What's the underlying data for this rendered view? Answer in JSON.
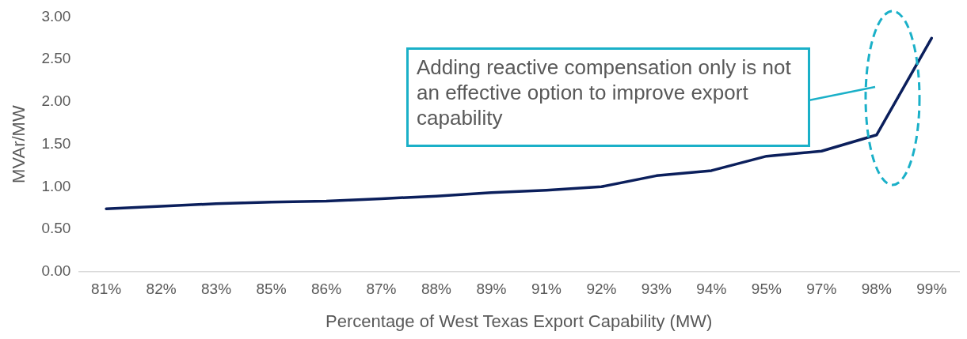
{
  "chart_data": {
    "type": "line",
    "xlabel": "Percentage of West Texas Export Capability (MW)",
    "ylabel": "MVAr/MW",
    "categories": [
      "81%",
      "82%",
      "83%",
      "85%",
      "86%",
      "87%",
      "88%",
      "89%",
      "91%",
      "92%",
      "93%",
      "94%",
      "95%",
      "97%",
      "98%",
      "99%"
    ],
    "series": [
      {
        "color": "#0b1f5c",
        "values": [
          0.74,
          0.77,
          0.8,
          0.82,
          0.83,
          0.86,
          0.89,
          0.93,
          0.96,
          1.0,
          1.13,
          1.19,
          1.36,
          1.42,
          1.61,
          2.75
        ]
      }
    ],
    "ylim": [
      0,
      3
    ],
    "yticks": [
      {
        "value": 0,
        "label": "0.00"
      },
      {
        "value": 0.5,
        "label": "0.50"
      },
      {
        "value": 1,
        "label": "1.00"
      },
      {
        "value": 1.5,
        "label": "1.50"
      },
      {
        "value": 2,
        "label": "2.00"
      },
      {
        "value": 2.5,
        "label": "2.50"
      },
      {
        "value": 3,
        "label": "3.00"
      }
    ],
    "grid": false,
    "legend": false,
    "marker": "none",
    "line_style": "solid",
    "annotations": [
      "Adding reactive compensation only is not an effective option to improve export capability"
    ]
  }
}
